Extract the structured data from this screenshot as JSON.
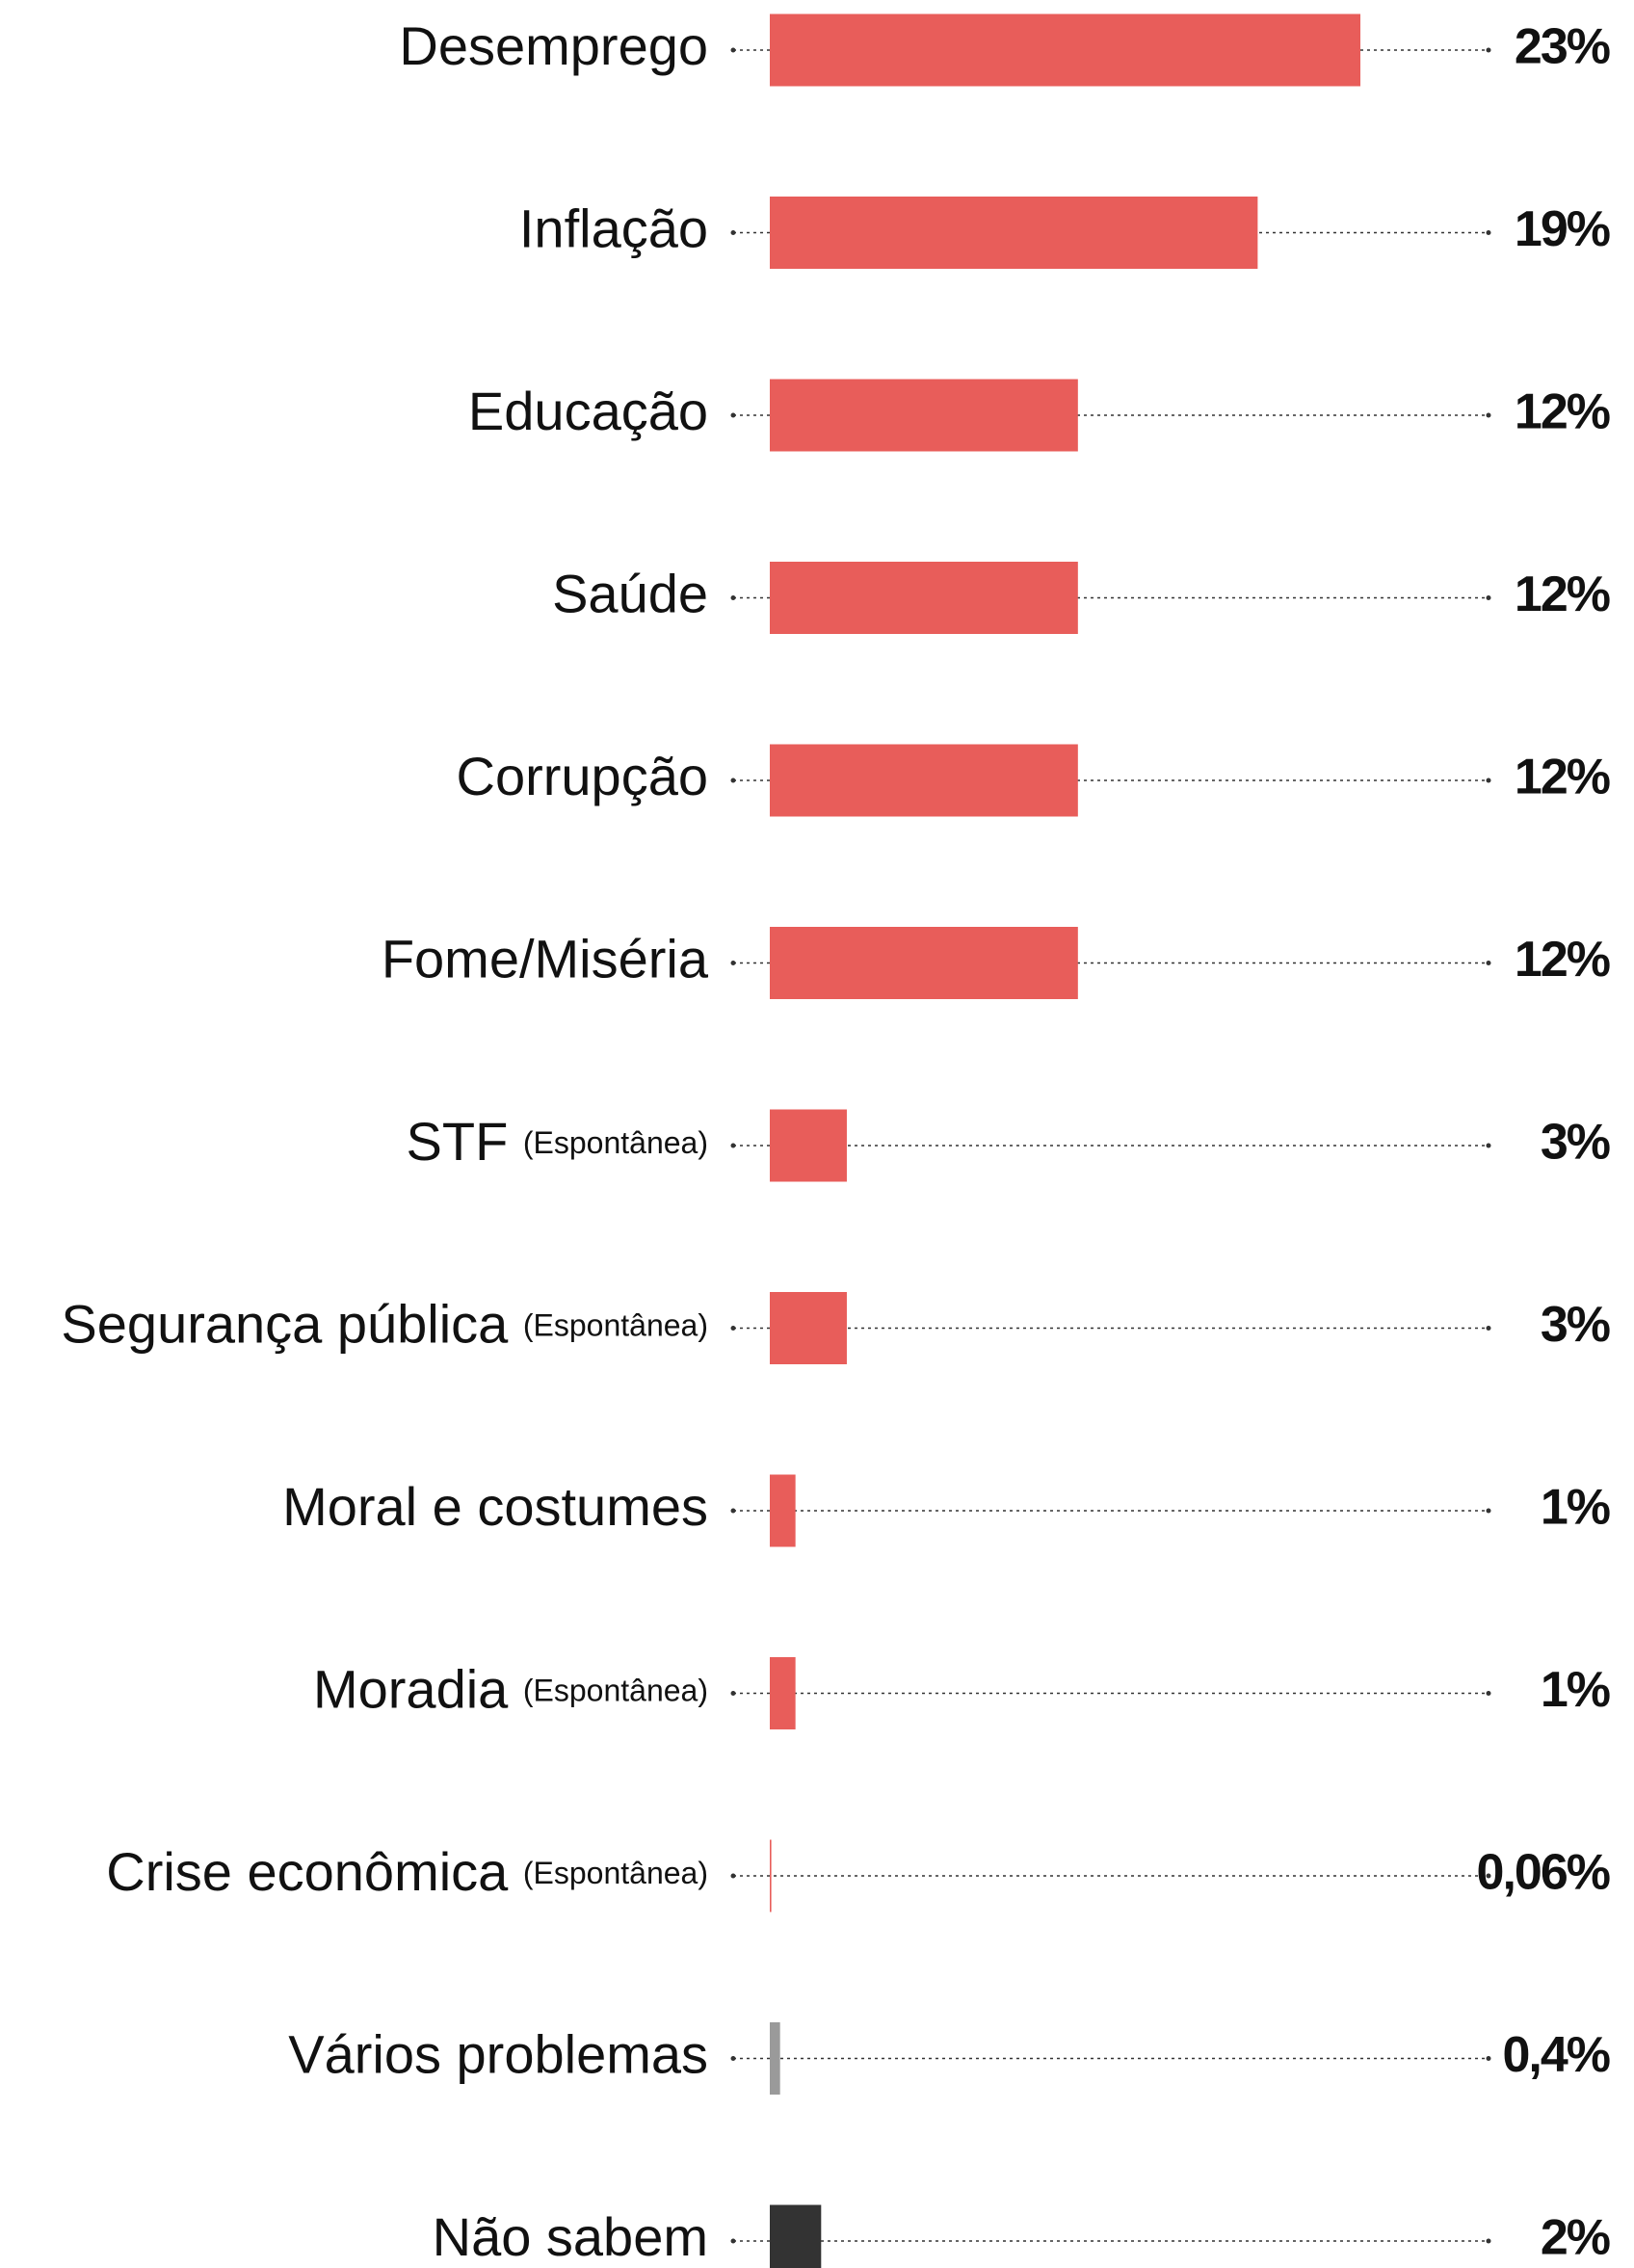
{
  "chart_data": {
    "type": "bar",
    "orientation": "horizontal",
    "categories": [
      "Desemprego",
      "Inflação",
      "Educação",
      "Saúde",
      "Corrupção",
      "Fome/Miséria",
      "STF",
      "Segurança pública",
      "Moral e costumes",
      "Moradia",
      "Crise econômica",
      "Vários problemas",
      "Não sabem"
    ],
    "category_notes": [
      null,
      null,
      null,
      null,
      null,
      null,
      "(Espontânea)",
      "(Espontânea)",
      null,
      "(Espontânea)",
      "(Espontânea)",
      null,
      null
    ],
    "values": [
      23,
      19,
      12,
      12,
      12,
      12,
      3,
      3,
      1,
      1,
      0.06,
      0.4,
      2
    ],
    "value_labels": [
      "23%",
      "19%",
      "12%",
      "12%",
      "12%",
      "12%",
      "3%",
      "3%",
      "1%",
      "1%",
      "0,06%",
      "0,4%",
      "2%"
    ],
    "colors": [
      "#e85d5a",
      "#e85d5a",
      "#e85d5a",
      "#e85d5a",
      "#e85d5a",
      "#e85d5a",
      "#e85d5a",
      "#e85d5a",
      "#e85d5a",
      "#e85d5a",
      "#e85d5a",
      "#9a9a9a",
      "#333333"
    ]
  }
}
